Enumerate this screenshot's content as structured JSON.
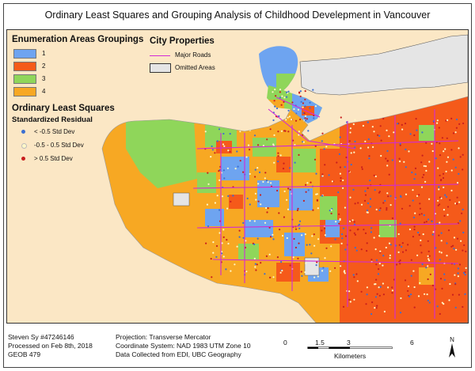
{
  "title": "Ordinary Least Squares and Grouping Analysis of Childhood Develepment in Vancouver",
  "legend": {
    "groupings_title": "Enumeration Areas Groupings",
    "groups": [
      {
        "label": "1",
        "color": "#6ea4f0"
      },
      {
        "label": "2",
        "color": "#f55a1a"
      },
      {
        "label": "3",
        "color": "#8fd65a"
      },
      {
        "label": "4",
        "color": "#f7a823"
      }
    ],
    "city_title": "City Properties",
    "major_roads": "Major Roads",
    "road_color": "#d12ad6",
    "omitted_areas": "Omitted Areas",
    "ols_title": "Ordinary Least Squares",
    "residual_title": "Standardized Residual",
    "residuals": [
      {
        "label": "< -0.5 Std Dev",
        "color": "#3b6fd1"
      },
      {
        "label": "-0.5 - 0.5 Std Dev",
        "color": "#fff8c8"
      },
      {
        "label": "> 0.5 Std Dev",
        "color": "#c81e1e"
      }
    ]
  },
  "footer": {
    "author": "Steven Sy #47246146",
    "processed": "Processed on Feb 8th, 2018",
    "course": "GEOB 479",
    "projection": "Projection: Transverse Mercator",
    "coordinate_system": "Coordinate System: NAD 1983 UTM Zone 10",
    "data_source": "Data Collected from EDI, UBC Geography"
  },
  "scale": {
    "ticks": [
      "0",
      "1.5",
      "3",
      "6"
    ],
    "tick_values": [
      0,
      1.5,
      3,
      6
    ],
    "unit": "Kilometers"
  },
  "north_label": "N"
}
